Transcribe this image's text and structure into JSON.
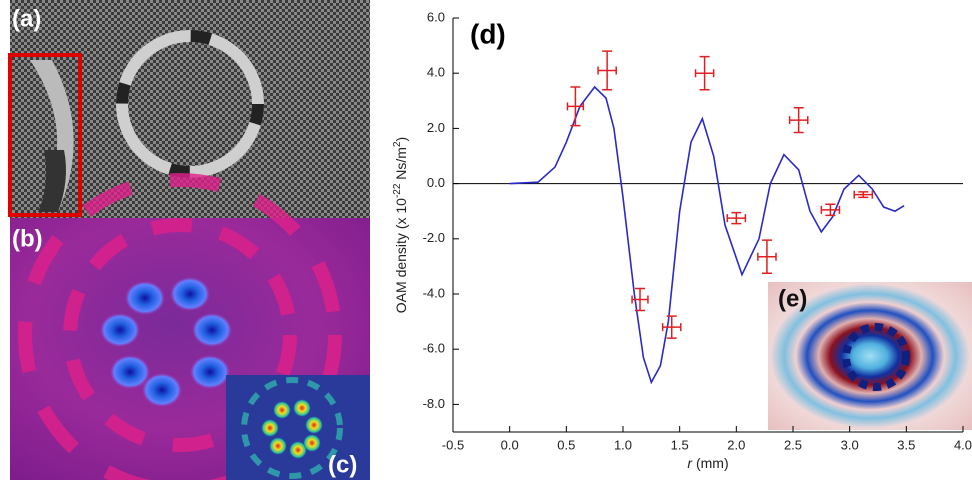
{
  "panels": {
    "a": "(a)",
    "b": "(b)",
    "c": "(c)",
    "e": "(e)"
  },
  "chart_data": {
    "type": "scatter",
    "title": "(d)",
    "y_label": [
      "OAM density (x 10",
      "-22",
      " Ns/m",
      "2",
      ")"
    ],
    "x_label": [
      "r",
      " (mm)"
    ],
    "xlim": [
      -0.5,
      4.0
    ],
    "ylim": [
      -9,
      6
    ],
    "xticks": [
      {
        "value": -0.5,
        "label": "-0.5"
      },
      {
        "value": 0,
        "label": "0.0"
      },
      {
        "value": 0.5,
        "label": "0.5"
      },
      {
        "value": 1,
        "label": "1.0"
      },
      {
        "value": 1.5,
        "label": "1.5"
      },
      {
        "value": 2,
        "label": "2.0"
      },
      {
        "value": 2.5,
        "label": "2.5"
      },
      {
        "value": 3,
        "label": "3.0"
      },
      {
        "value": 3.5,
        "label": "3.5"
      },
      {
        "value": 4,
        "label": "4.0"
      }
    ],
    "yticks": [
      {
        "value": 6,
        "label": "6.0"
      },
      {
        "value": 4,
        "label": "4.0"
      },
      {
        "value": 2,
        "label": "2.0"
      },
      {
        "value": 0,
        "label": "0.0"
      },
      {
        "value": -2,
        "label": "-2.0"
      },
      {
        "value": -4,
        "label": "-4.0"
      },
      {
        "value": -6,
        "label": "-6.0"
      },
      {
        "value": -8,
        "label": "-8.0"
      }
    ],
    "series": [
      {
        "type": "line",
        "color": "#2a2ac8",
        "x": [
          0,
          0.25,
          0.4,
          0.5,
          0.62,
          0.75,
          0.85,
          0.92,
          1.0,
          1.1,
          1.18,
          1.25,
          1.33,
          1.4,
          1.5,
          1.6,
          1.7,
          1.8,
          1.9,
          2.05,
          2.2,
          2.3,
          2.42,
          2.55,
          2.65,
          2.75,
          2.85,
          2.95,
          3.08,
          3.2,
          3.3,
          3.4,
          3.48
        ],
        "values": [
          0,
          0.05,
          0.6,
          1.5,
          2.8,
          3.5,
          3.1,
          2.0,
          -0.5,
          -4.0,
          -6.3,
          -7.2,
          -6.6,
          -5.0,
          -1.0,
          1.5,
          2.35,
          1.0,
          -1.5,
          -3.3,
          -2.0,
          0,
          1.05,
          0.5,
          -1.0,
          -1.75,
          -1.2,
          -0.2,
          0.3,
          -0.2,
          -0.85,
          -1.0,
          -0.8
        ]
      },
      {
        "type": "errorbar",
        "color": "#e02020",
        "x": [
          0.58,
          0.86,
          1.15,
          1.43,
          1.72,
          2.0,
          2.27,
          2.55,
          2.83,
          3.12
        ],
        "values": [
          2.8,
          4.1,
          -4.2,
          -5.2,
          4.0,
          -1.25,
          -2.65,
          2.3,
          -0.95,
          -0.4
        ],
        "xerr": [
          0.07,
          0.08,
          0.07,
          0.08,
          0.08,
          0.08,
          0.08,
          0.08,
          0.08,
          0.08
        ],
        "yerr": [
          0.7,
          0.7,
          0.4,
          0.4,
          0.6,
          0.2,
          0.6,
          0.45,
          0.2,
          0.1
        ]
      }
    ]
  }
}
